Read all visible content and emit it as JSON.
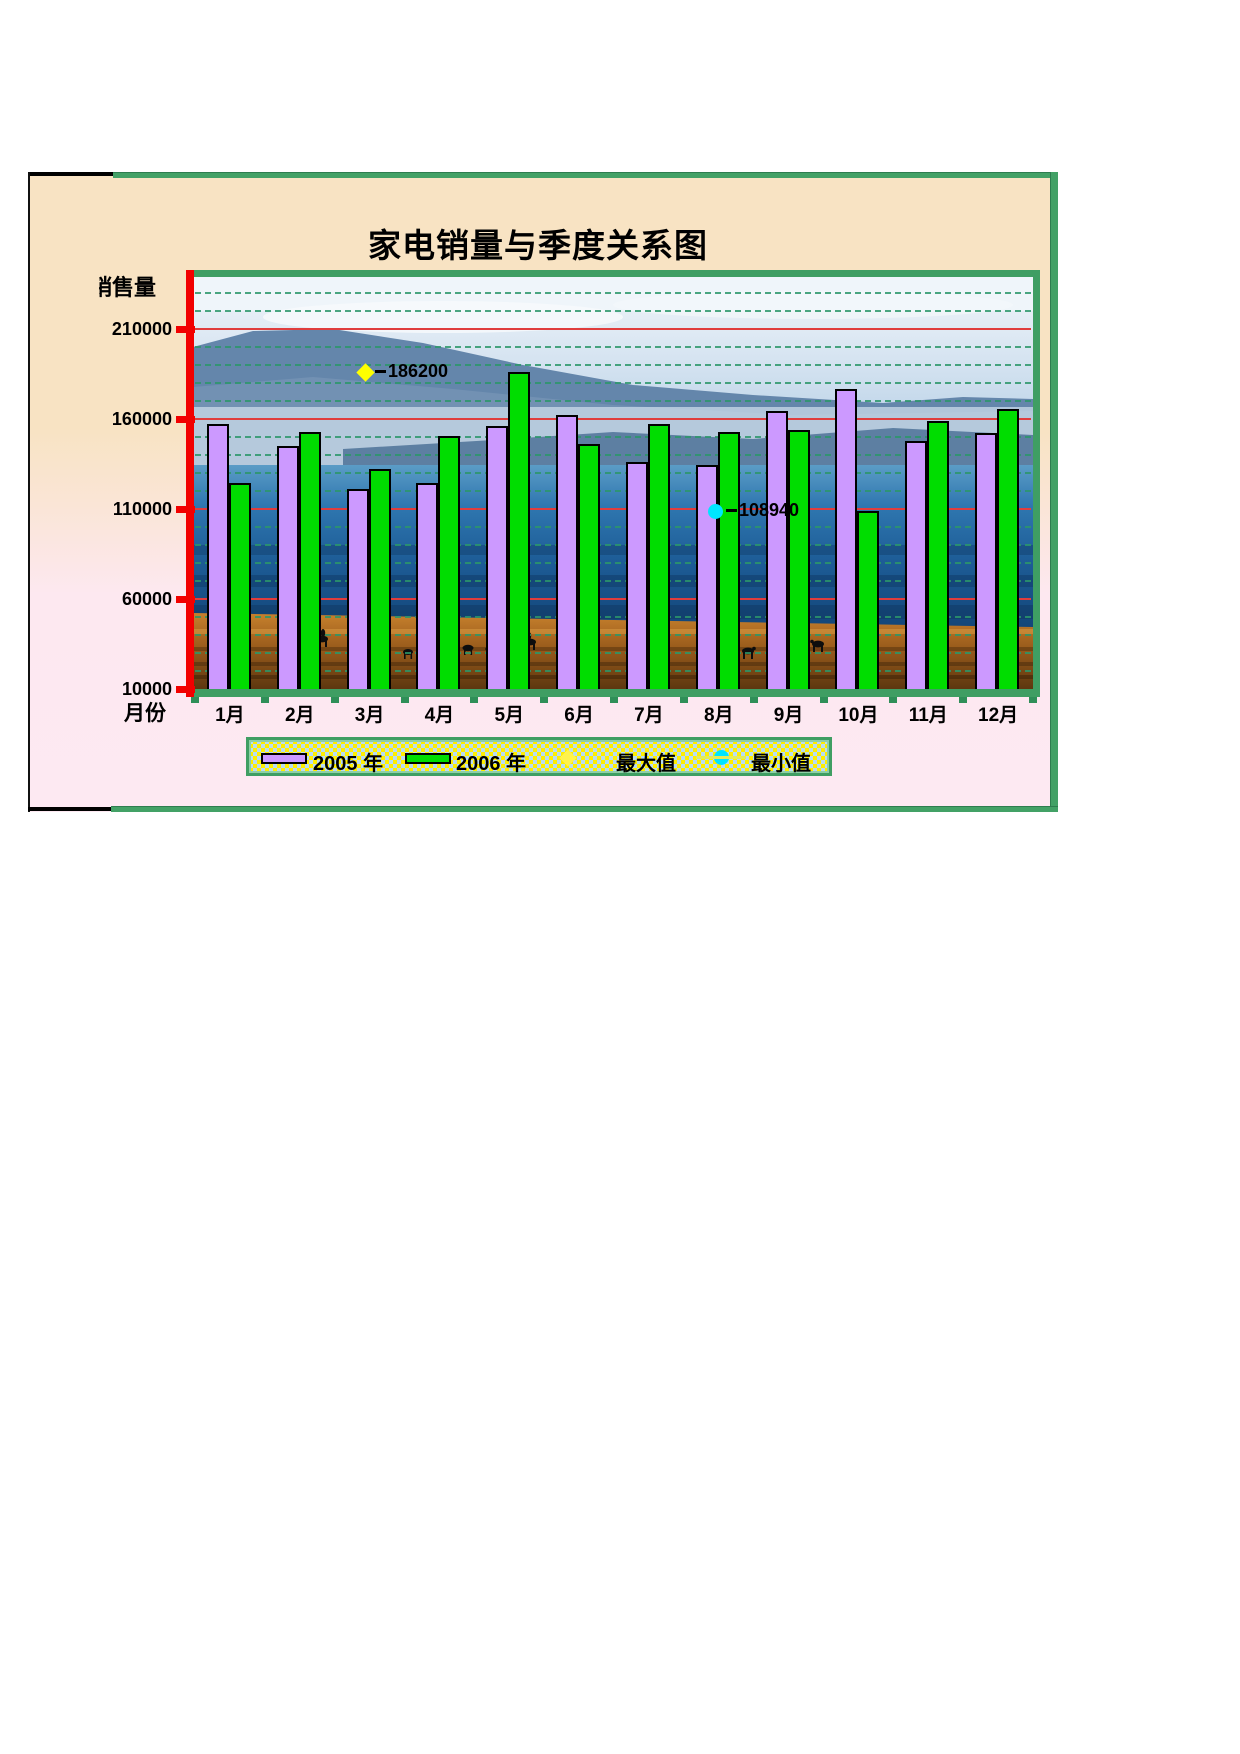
{
  "chart": {
    "title": "家电销量与季度关系图",
    "y_axis": {
      "title": "销售量",
      "tick_labels": [
        "210000",
        "160000",
        "110000",
        "60000",
        "10000"
      ]
    },
    "x_axis": {
      "title": "月份",
      "labels": [
        "1月",
        "2月",
        "3月",
        "4月",
        "5月",
        "6月",
        "7月",
        "8月",
        "9月",
        "10月",
        "11月",
        "12月"
      ]
    },
    "legend": {
      "items": [
        {
          "label": "2005 年",
          "marker": "purple-bar"
        },
        {
          "label": "2006 年",
          "marker": "green-bar"
        },
        {
          "label": "最大值",
          "marker": "yellow-diamond"
        },
        {
          "label": "最小值",
          "marker": "cyan-circle"
        }
      ]
    },
    "annotations": {
      "max_label": "186200",
      "min_label": "108940"
    }
  },
  "colors": {
    "series_2005": "#cc99ff",
    "series_2006": "#00dd00",
    "max_marker": "#ffff00",
    "min_marker": "#00e5ff",
    "axis_red": "#f20000",
    "frame_green": "#3f9e63",
    "major_gridline": "#e03d3d",
    "minor_gridline": "#2c966a",
    "panel_top": "#f8e3c3",
    "panel_bottom": "#fde9f2"
  },
  "chart_data": {
    "type": "bar",
    "title": "家电销量与季度关系图",
    "xlabel": "月份",
    "ylabel": "销售量",
    "categories": [
      "1月",
      "2月",
      "3月",
      "4月",
      "5月",
      "6月",
      "7月",
      "8月",
      "9月",
      "10月",
      "11月",
      "12月"
    ],
    "series": [
      {
        "name": "2005 年",
        "color": "#cc99ff",
        "values": [
          157000,
          145000,
          121000,
          124500,
          156000,
          162500,
          136000,
          134500,
          164500,
          176500,
          148000,
          152500
        ]
      },
      {
        "name": "2006 年",
        "color": "#00dd00",
        "values": [
          124500,
          153000,
          132500,
          150500,
          186200,
          146000,
          157500,
          153000,
          154000,
          108940,
          159000,
          165500
        ]
      }
    ],
    "markers": [
      {
        "name": "最大值",
        "shape": "diamond",
        "color": "#ffff00",
        "category": "5月",
        "series": "2006 年",
        "value": 186200,
        "label": "186200"
      },
      {
        "name": "最小值",
        "shape": "circle",
        "color": "#00e5ff",
        "category": "10月",
        "series": "2006 年",
        "value": 108940,
        "label": "108940"
      }
    ],
    "ylim": [
      10000,
      240000
    ],
    "y_major_ticks": [
      10000,
      60000,
      110000,
      160000,
      210000
    ],
    "y_minor_step": 10000,
    "grid": {
      "major": "solid-red",
      "minor": "dashed-green"
    },
    "legend_position": "bottom",
    "plot_background": "lake-mountain-shore-photo"
  }
}
